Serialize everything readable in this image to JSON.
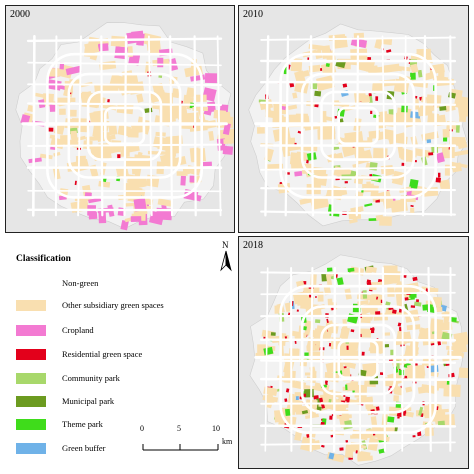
{
  "panels": [
    {
      "id": "2000",
      "year": "2000"
    },
    {
      "id": "2010",
      "year": "2010"
    },
    {
      "id": "2018",
      "year": "2018"
    }
  ],
  "legend": {
    "title": "Classification",
    "items": [
      {
        "key": "non-green",
        "label": "Non-green",
        "color": "#ffffff"
      },
      {
        "key": "other-subsidiary",
        "label": "Other subsidiary green spaces",
        "color": "#f9dfb0"
      },
      {
        "key": "cropland",
        "label": "Cropland",
        "color": "#f37ad2"
      },
      {
        "key": "residential",
        "label": "Residential green space",
        "color": "#e3001b"
      },
      {
        "key": "community-park",
        "label": "Community park",
        "color": "#a8d86b"
      },
      {
        "key": "municipal-park",
        "label": "Municipal park",
        "color": "#6c9b20"
      },
      {
        "key": "theme-park",
        "label": "Theme park",
        "color": "#3fdc1b"
      },
      {
        "key": "green-buffer",
        "label": "Green buffer",
        "color": "#6fb2e8"
      }
    ]
  },
  "north_arrow": {
    "label": "N"
  },
  "scale_bar": {
    "ticks": [
      "0",
      "5",
      "10"
    ],
    "unit": "km"
  },
  "colors": {
    "background": "#e6e6e6",
    "roads": "#ffffff",
    "frame": "#222222"
  }
}
